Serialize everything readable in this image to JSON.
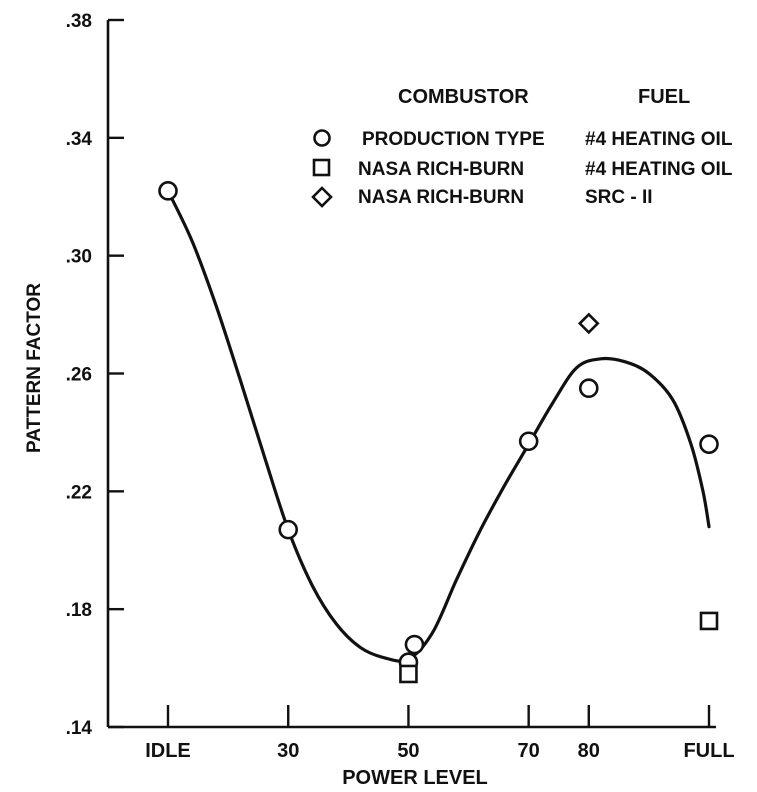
{
  "chart_data": {
    "type": "scatter",
    "xlabel": "POWER LEVEL",
    "ylabel": "PATTERN FACTOR",
    "x_categories": [
      "IDLE",
      "30",
      "50",
      "70",
      "80",
      "FULL"
    ],
    "x_positions": [
      10,
      30,
      50,
      70,
      80,
      100
    ],
    "y_ticks": [
      ".14",
      ".18",
      ".22",
      ".26",
      ".30",
      ".34",
      ".38"
    ],
    "ylim": [
      0.14,
      0.38
    ],
    "grid": false,
    "legend": {
      "placement": "top-right",
      "header_combustor": "COMBUSTOR",
      "header_fuel": "FUEL",
      "entries": [
        {
          "marker": "circle",
          "combustor": "PRODUCTION TYPE",
          "fuel": "#4 HEATING OIL"
        },
        {
          "marker": "square",
          "combustor": "NASA RICH-BURN",
          "fuel": "#4 HEATING OIL"
        },
        {
          "marker": "diamond",
          "combustor": "NASA RICH-BURN",
          "fuel": "SRC - II"
        }
      ]
    },
    "series": [
      {
        "marker": "circle",
        "points": [
          [
            10,
            0.322
          ],
          [
            30,
            0.207
          ],
          [
            50,
            0.162
          ],
          [
            51,
            0.168
          ],
          [
            70,
            0.237
          ],
          [
            80,
            0.255
          ],
          [
            100,
            0.236
          ]
        ]
      },
      {
        "marker": "square",
        "points": [
          [
            50,
            0.158
          ],
          [
            100,
            0.176
          ]
        ]
      },
      {
        "marker": "diamond",
        "points": [
          [
            80,
            0.277
          ]
        ]
      }
    ],
    "fit_curve": [
      [
        10,
        0.322
      ],
      [
        14,
        0.305
      ],
      [
        18,
        0.283
      ],
      [
        22,
        0.258
      ],
      [
        26,
        0.232
      ],
      [
        30,
        0.207
      ],
      [
        34,
        0.188
      ],
      [
        38,
        0.175
      ],
      [
        42,
        0.167
      ],
      [
        46,
        0.1635
      ],
      [
        50,
        0.163
      ],
      [
        54,
        0.172
      ],
      [
        58,
        0.19
      ],
      [
        62,
        0.207
      ],
      [
        66,
        0.222
      ],
      [
        70,
        0.236
      ],
      [
        74,
        0.25
      ],
      [
        78,
        0.262
      ],
      [
        82,
        0.265
      ],
      [
        86,
        0.264
      ],
      [
        90,
        0.26
      ],
      [
        94,
        0.251
      ],
      [
        97,
        0.236
      ],
      [
        99,
        0.22
      ],
      [
        100,
        0.208
      ]
    ]
  }
}
